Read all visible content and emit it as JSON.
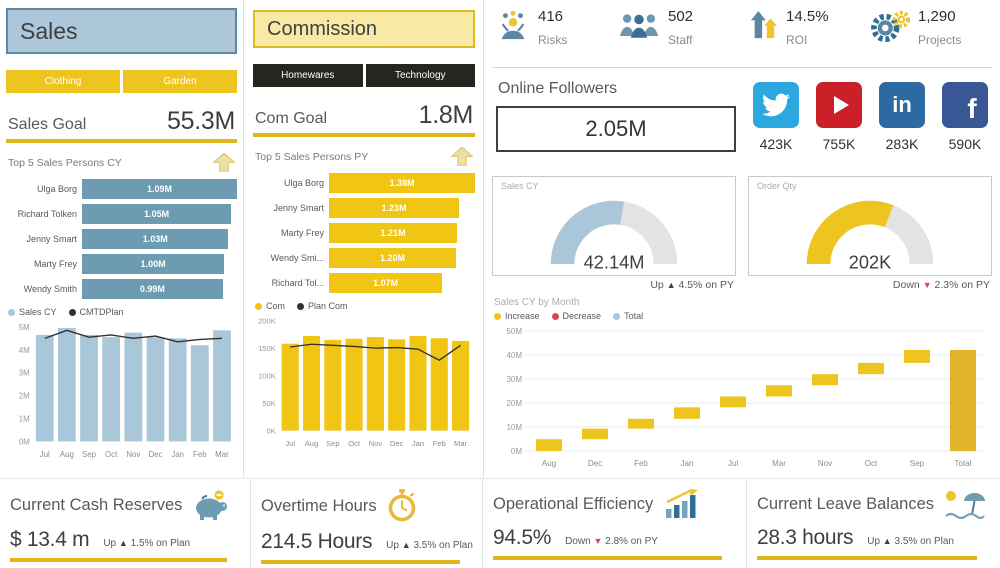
{
  "sales_panel": {
    "title": "Sales",
    "tabs": [
      "Clothing",
      "Garden"
    ],
    "goal": {
      "label": "Sales Goal",
      "value": "55.3M"
    }
  },
  "commission_panel": {
    "title": "Commission",
    "tabs": [
      "Homewares",
      "Technology"
    ],
    "goal": {
      "label": "Com Goal",
      "value": "1.8M"
    }
  },
  "kpis": [
    {
      "value": "416",
      "label": "Risks"
    },
    {
      "value": "502",
      "label": "Staff"
    },
    {
      "value": "14.5%",
      "label": "ROI"
    },
    {
      "value": "1,290",
      "label": "Projects"
    }
  ],
  "followers": {
    "title": "Online Followers",
    "value": "2.05M"
  },
  "social": [
    {
      "network": "Twitter",
      "count": "423K",
      "color": "#2ba8e0"
    },
    {
      "network": "YouTube",
      "count": "755K",
      "color": "#cb2027"
    },
    {
      "network": "LinkedIn",
      "count": "283K",
      "color": "#2d6aa3"
    },
    {
      "network": "Facebook",
      "count": "590K",
      "color": "#3a5795"
    }
  ],
  "bottom_cards": [
    {
      "title": "Current Cash Reserves",
      "value": "$ 13.4 m",
      "status": {
        "word": "Up",
        "arrow": "▲",
        "rest": "1.5% on Plan",
        "dir": "up"
      }
    },
    {
      "title": "Overtime Hours",
      "value": "214.5 Hours",
      "status": {
        "word": "Up",
        "arrow": "▲",
        "rest": "3.5% on Plan",
        "dir": "up"
      }
    },
    {
      "title": "Operational Efficiency",
      "value": "94.5%",
      "status": {
        "word": "Down",
        "arrow": "▼",
        "rest": "2.8% on PY",
        "dir": "down"
      }
    },
    {
      "title": "Current Leave Balances",
      "value": "28.3 hours",
      "status": {
        "word": "Up",
        "arrow": "▲",
        "rest": "3.5% on Plan",
        "dir": "up"
      }
    }
  ],
  "chart_data": [
    {
      "id": "sales_top5",
      "type": "bar",
      "orientation": "horizontal",
      "title": "Top 5 Sales Persons CY",
      "categories": [
        "Ulga Borg",
        "Richard Tolken",
        "Jenny Smart",
        "Marty Frey",
        "Wendy Smith"
      ],
      "values": [
        1.09,
        1.05,
        1.03,
        1.0,
        0.99
      ],
      "labels": [
        "1.09M",
        "1.05M",
        "1.03M",
        "1.00M",
        "0.99M"
      ],
      "bar_color": "#6d9cb2"
    },
    {
      "id": "sales_by_month",
      "type": "bar",
      "categories": [
        "Jul",
        "Aug",
        "Sep",
        "Oct",
        "Nov",
        "Dec",
        "Jan",
        "Feb",
        "Mar"
      ],
      "series": [
        {
          "name": "Sales CY",
          "kind": "bar",
          "color": "#a9c7d8",
          "values": [
            4.65,
            4.95,
            4.65,
            4.55,
            4.75,
            4.55,
            4.5,
            4.2,
            4.85
          ]
        },
        {
          "name": "CMTDPlan",
          "kind": "line",
          "color": "#33302e",
          "values": [
            4.5,
            4.85,
            4.55,
            4.65,
            4.5,
            4.6,
            4.35,
            4.45,
            4.5
          ]
        }
      ],
      "unit": "M",
      "ylim": [
        0,
        5
      ],
      "yticks": [
        "0M",
        "1M",
        "2M",
        "3M",
        "4M",
        "5M"
      ],
      "legend": [
        {
          "label": "Sales CY",
          "color": "#a9c7d8"
        },
        {
          "label": "CMTDPlan",
          "color": "#33302e"
        }
      ]
    },
    {
      "id": "commission_top5",
      "type": "bar",
      "orientation": "horizontal",
      "title": "Top 5 Sales Persons PY",
      "categories": [
        "Ulga Borg",
        "Jenny Smart",
        "Marty Frey",
        "Wendy Smi...",
        "Richard Tol..."
      ],
      "values": [
        1.38,
        1.23,
        1.21,
        1.2,
        1.07
      ],
      "labels": [
        "1.38M",
        "1.23M",
        "1.21M",
        "1.20M",
        "1.07M"
      ],
      "bar_color": "#f0c514"
    },
    {
      "id": "commission_by_month",
      "type": "bar",
      "categories": [
        "Jul",
        "Aug",
        "Sep",
        "Oct",
        "Nov",
        "Dec",
        "Jan",
        "Feb",
        "Mar"
      ],
      "series": [
        {
          "name": "Com",
          "kind": "bar",
          "color": "#f0c514",
          "values": [
            158,
            172,
            165,
            167,
            170,
            166,
            172,
            168,
            163
          ]
        },
        {
          "name": "Plan Com",
          "kind": "line",
          "color": "#33302e",
          "values": [
            152,
            157,
            155,
            153,
            150,
            151,
            148,
            128,
            155
          ]
        }
      ],
      "unit": "K",
      "ylim": [
        0,
        200
      ],
      "yticks": [
        "0K",
        "50K",
        "100K",
        "150K",
        "200K"
      ],
      "legend": [
        {
          "label": "Com",
          "color": "#f0c514"
        },
        {
          "label": "Plan Com",
          "color": "#33302e"
        }
      ]
    },
    {
      "id": "sales_cy_gauge",
      "type": "gauge",
      "title": "Sales CY",
      "value": "42.14M",
      "percent": 55,
      "color": "#a9c7d8",
      "status": {
        "word": "Up",
        "arrow": "▲",
        "rest": "4.5% on PY",
        "dir": "up"
      }
    },
    {
      "id": "order_qty_gauge",
      "type": "gauge",
      "title": "Order Qty",
      "value": "202K",
      "percent": 62,
      "color": "#eec51f",
      "status": {
        "word": "Down",
        "arrow": "▼",
        "rest": "2.3% on PY",
        "dir": "down"
      }
    },
    {
      "id": "sales_cy_by_month_waterfall",
      "type": "waterfall",
      "title": "Sales CY by Month",
      "categories": [
        "Aug",
        "Dec",
        "Feb",
        "Jan",
        "Jul",
        "Mar",
        "Nov",
        "Oct",
        "Sep",
        "Total"
      ],
      "increments": [
        4.9,
        4.4,
        4.1,
        4.8,
        4.5,
        4.7,
        4.6,
        4.7,
        5.4
      ],
      "total": 42.1,
      "unit": "M",
      "ylim": [
        0,
        50
      ],
      "yticks": [
        "0M",
        "10M",
        "20M",
        "30M",
        "40M",
        "50M"
      ],
      "colors": {
        "increase": "#eec51f",
        "decrease": "#d6494f",
        "total": "#e3b32a"
      },
      "legend": [
        {
          "label": "Increase",
          "color": "#f0c514"
        },
        {
          "label": "Decrease",
          "color": "#d6494f"
        },
        {
          "label": "Total",
          "color": "#a9c7d8"
        }
      ]
    }
  ]
}
